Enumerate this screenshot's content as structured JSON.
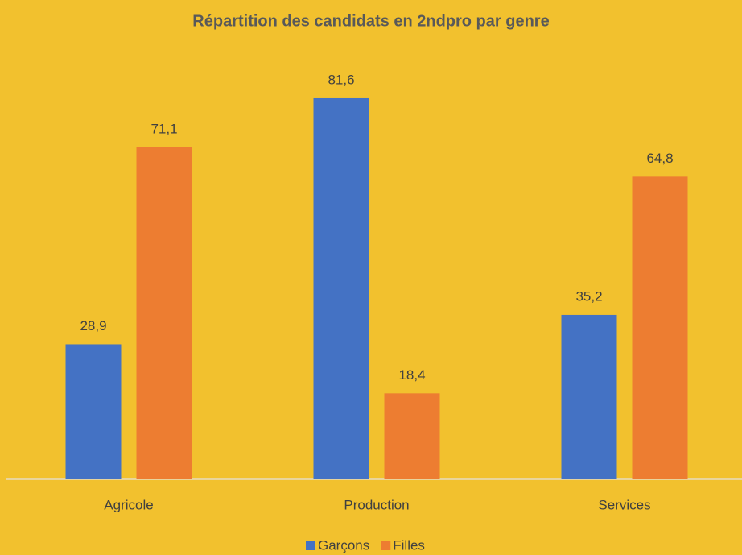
{
  "chart_data": {
    "type": "bar",
    "title": "Répartition des candidats en 2ndpro par genre",
    "categories": [
      "Agricole",
      "Production",
      "Services"
    ],
    "series": [
      {
        "name": "Garçons",
        "color": "#4472c4",
        "values": [
          28.9,
          81.6,
          35.2
        ],
        "value_labels": [
          "28,9",
          "81,6",
          "35,2"
        ]
      },
      {
        "name": "Filles",
        "color": "#ed7d31",
        "values": [
          71.1,
          18.4,
          64.8
        ],
        "value_labels": [
          "71,1",
          "18,4",
          "64,8"
        ]
      }
    ],
    "legend": "bottom"
  }
}
